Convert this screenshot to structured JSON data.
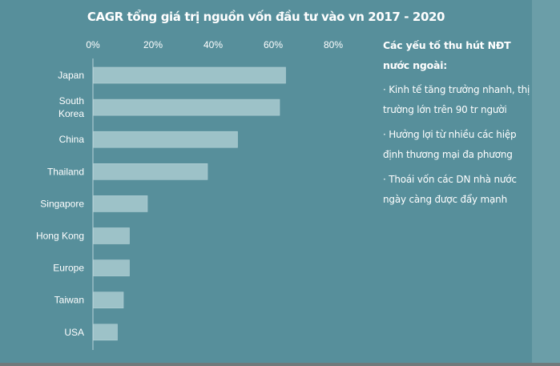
{
  "chart_data": {
    "type": "bar",
    "orientation": "horizontal",
    "title": "CAGR tổng giá trị nguồn vốn đầu tư vào vn 2017 - 2020",
    "categories": [
      "Japan",
      "South Korea",
      "China",
      "Thailand",
      "Singapore",
      "Hong Kong",
      "Europe",
      "Taiwan",
      "USA"
    ],
    "category_lines": [
      [
        "Japan"
      ],
      [
        "South",
        "Korea"
      ],
      [
        "China"
      ],
      [
        "Thailand"
      ],
      [
        "Singapore"
      ],
      [
        "Hong Kong"
      ],
      [
        "Europe"
      ],
      [
        "Taiwan"
      ],
      [
        "USA"
      ]
    ],
    "values": [
      64,
      62,
      48,
      38,
      18,
      12,
      12,
      10,
      8
    ],
    "xlim": [
      0,
      80
    ],
    "ticks": [
      "0%",
      "20%",
      "40%",
      "60%",
      "80%"
    ],
    "tick_values": [
      0,
      20,
      40,
      60,
      80
    ],
    "axis_position": "top",
    "grid": false,
    "colors": {
      "background": "#578f9b",
      "bar": "#9dc2c8"
    }
  },
  "panel": {
    "heading": "Các yếu tố thu hút NĐT nước ngoài:",
    "items": [
      "· Kinh tế tăng trưởng nhanh, thị trường lớn trên 90 tr người",
      "· Hưởng lợi từ nhiều các hiệp định thương mại đa phương",
      "· Thoái vốn các DN nhà nước ngày càng được đẩy mạnh"
    ]
  }
}
